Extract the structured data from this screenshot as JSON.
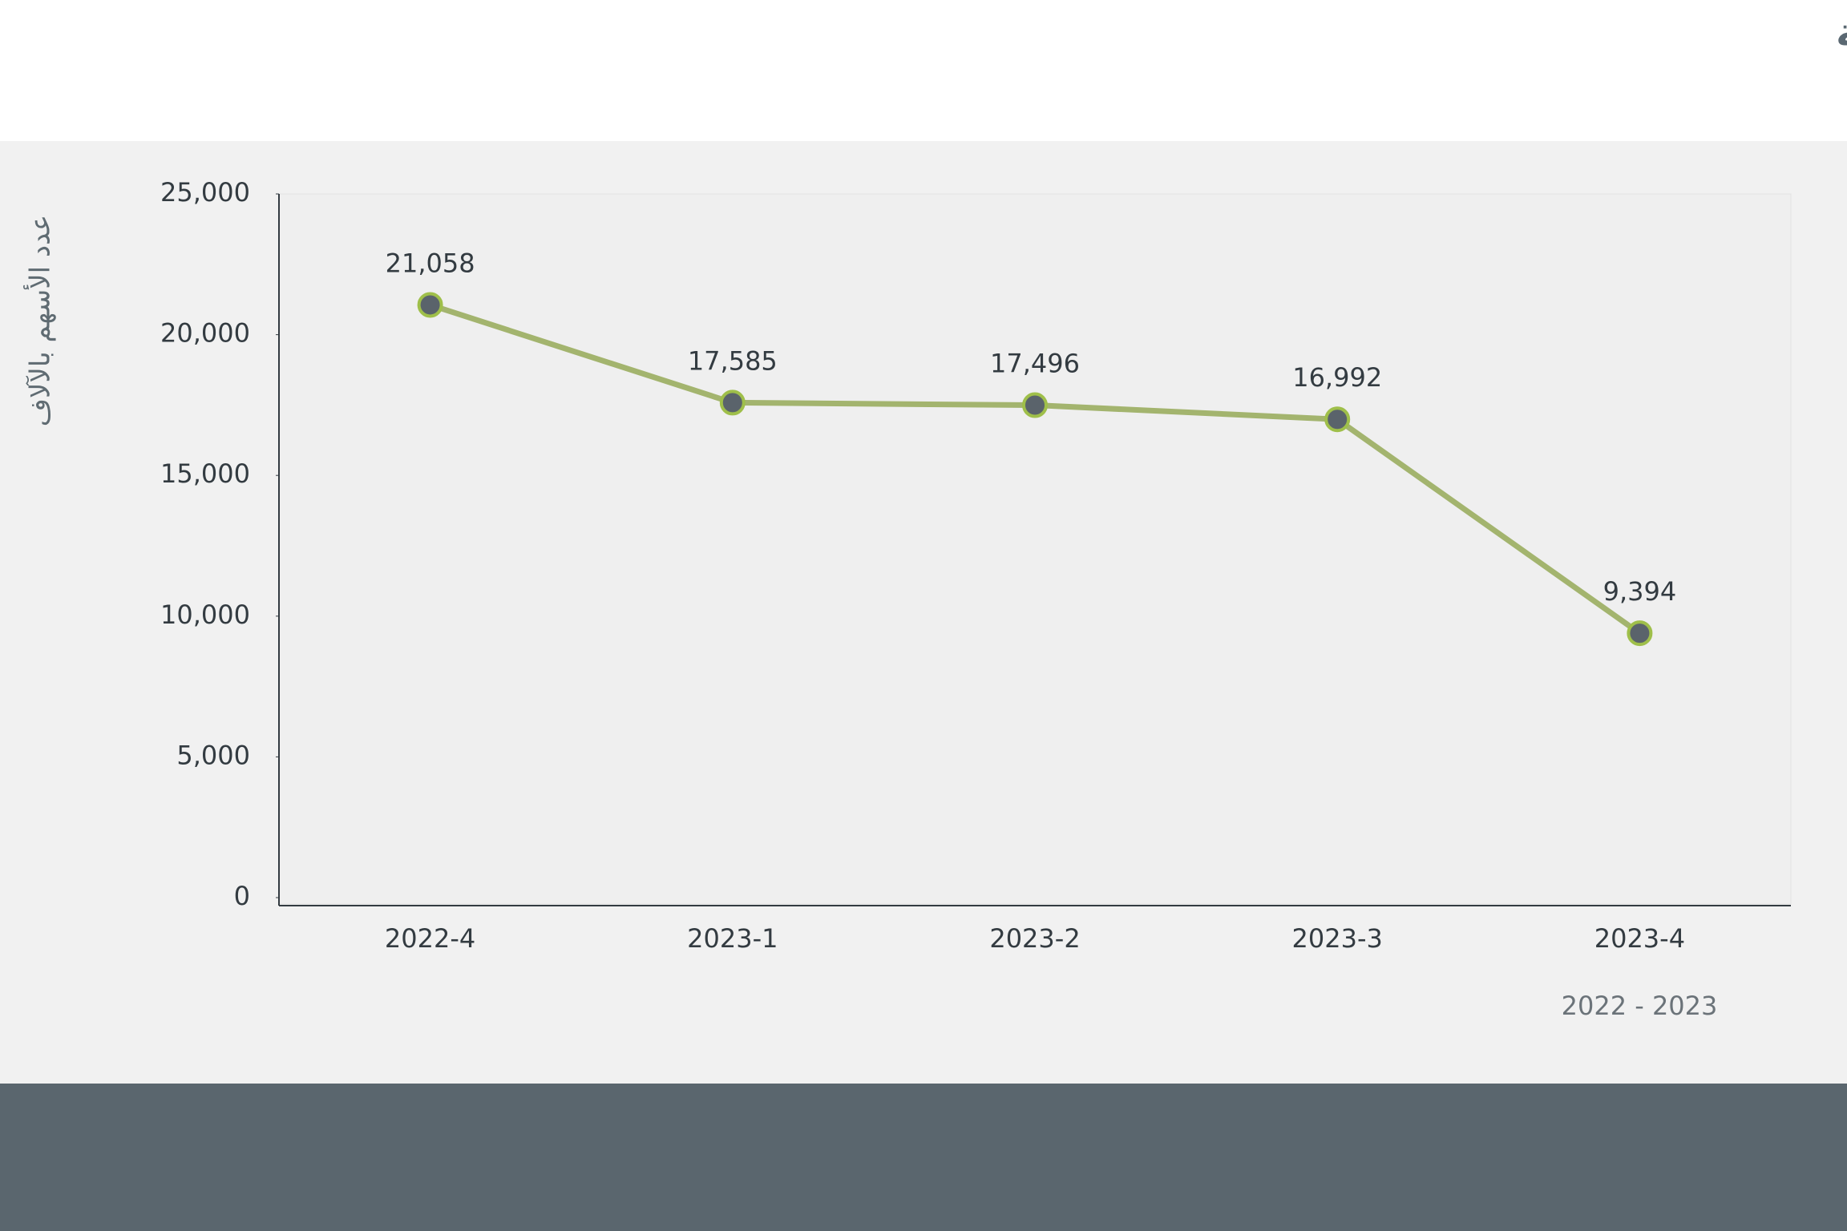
{
  "chart_data": {
    "type": "line",
    "title": "تطور ملكية الصناديق الاستثمارية السعودية",
    "y_label": "عدد الأسهم بالآلاف",
    "annotation": "2022 - 2023",
    "categories": [
      "2022-4",
      "2023-1",
      "2023-2",
      "2023-3",
      "2023-4"
    ],
    "values": [
      21058,
      17585,
      17496,
      16992,
      9394
    ],
    "value_labels": [
      "21,058",
      "17,585",
      "17,496",
      "16,992",
      "9,394"
    ],
    "color": "#a3b46e",
    "marker_color": "#5a636b",
    "marker_edge": "#9fbf4a",
    "ylim": [
      0,
      25000
    ],
    "yticks": [
      0,
      {
        "value": 5000,
        "label": "5,000"
      },
      {
        "value": 10000,
        "label": "10,000"
      },
      {
        "value": 15000,
        "label": "15,000"
      },
      {
        "value": 20000,
        "label": "20,000"
      },
      {
        "value": 25000,
        "label": "25,000"
      }
    ],
    "grid": false
  }
}
